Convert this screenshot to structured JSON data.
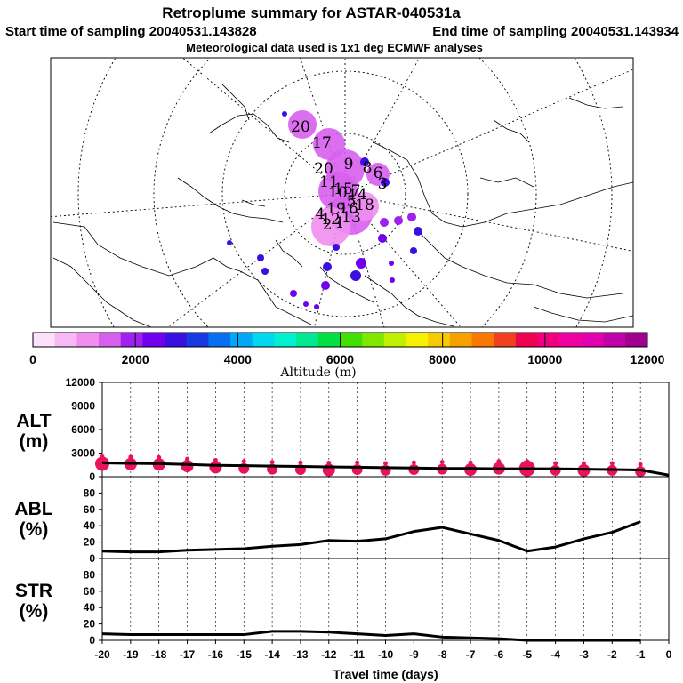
{
  "header": {
    "title": "Retroplume summary for ASTAR-040531a",
    "start_label": "Start time of sampling 20040531.143828",
    "end_label": "End time of sampling 20040531.143934",
    "met_note": "Meteorological data used is 1x1 deg ECMWF analyses"
  },
  "colorbar": {
    "label": "Altitude (m)",
    "ticks": [
      "0",
      "2000",
      "4000",
      "6000",
      "8000",
      "10000",
      "12000"
    ],
    "colors": [
      "#fde0fb",
      "#f7b8f5",
      "#ef8ef0",
      "#d85fee",
      "#a020f0",
      "#7000ee",
      "#3a10e0",
      "#1838e0",
      "#0870f0",
      "#00a8f8",
      "#00d8f0",
      "#00f0d0",
      "#00e890",
      "#00e040",
      "#40e000",
      "#80e800",
      "#c0f000",
      "#f8f000",
      "#f8c800",
      "#f8a000",
      "#f87800",
      "#f04020",
      "#f00050",
      "#f00080",
      "#f000a0",
      "#e000b0",
      "#c000a8",
      "#a00090"
    ]
  },
  "map": {
    "plume_labels": [
      "20",
      "17",
      "20",
      "9",
      "8",
      "6",
      "3",
      "11",
      "10",
      "5",
      "15",
      "14",
      "19",
      "13",
      "18",
      "16",
      "12",
      "4",
      "2",
      "1",
      "7"
    ]
  },
  "chart_data": [
    {
      "type": "line",
      "panel": "ALT",
      "ylabel_line1": "ALT",
      "ylabel_line2": "(m)",
      "ylim": [
        0,
        12000
      ],
      "yticks": [
        "0",
        "3000",
        "6000",
        "9000",
        "12000"
      ],
      "x": [
        -20,
        -19,
        -18,
        -17,
        -16,
        -15,
        -14,
        -13,
        -12,
        -11,
        -10,
        -9,
        -8,
        -7,
        -6,
        -5,
        -4,
        -3,
        -2,
        -1,
        0
      ],
      "values": [
        1750,
        1700,
        1650,
        1550,
        1450,
        1400,
        1350,
        1300,
        1250,
        1200,
        1150,
        1100,
        1050,
        1050,
        1000,
        1000,
        1000,
        950,
        900,
        850,
        200
      ],
      "dot_values": [
        1650,
        1600,
        1550,
        1350,
        1200,
        1050,
        950,
        900,
        850,
        900,
        800,
        900,
        950,
        900,
        1050,
        1050,
        800,
        800,
        800,
        650
      ],
      "dot_sizes": [
        8,
        7,
        7,
        7,
        7,
        6,
        6,
        6,
        7,
        6,
        6,
        6,
        6,
        7,
        7,
        9,
        6,
        7,
        6,
        6
      ],
      "marker_color": "#e8145a"
    },
    {
      "type": "line",
      "panel": "ABL",
      "ylabel_line1": "ABL",
      "ylabel_line2": "(%)",
      "ylim": [
        0,
        100
      ],
      "yticks": [
        "0",
        "20",
        "40",
        "60",
        "80"
      ],
      "x": [
        -20,
        -19,
        -18,
        -17,
        -16,
        -15,
        -14,
        -13,
        -12,
        -11,
        -10,
        -9,
        -8,
        -7,
        -6,
        -5,
        -4,
        -3,
        -2,
        -1
      ],
      "values": [
        9,
        8,
        8,
        10,
        11,
        12,
        15,
        17,
        22,
        21,
        24,
        33,
        38,
        30,
        22,
        9,
        14,
        24,
        32,
        45
      ]
    },
    {
      "type": "line",
      "panel": "STR",
      "ylabel_line1": "STR",
      "ylabel_line2": "(%)",
      "ylim": [
        0,
        100
      ],
      "yticks": [
        "0",
        "20",
        "40",
        "60",
        "80"
      ],
      "x": [
        -20,
        -19,
        -18,
        -17,
        -16,
        -15,
        -14,
        -13,
        -12,
        -11,
        -10,
        -9,
        -8,
        -7,
        -6,
        -5,
        -4,
        -3,
        -2,
        -1
      ],
      "values": [
        8,
        7,
        7,
        7,
        7,
        7,
        11,
        11,
        10,
        8,
        6,
        8,
        4,
        3,
        2,
        0,
        0,
        0,
        0,
        0
      ],
      "xticks": [
        "-20",
        "-19",
        "-18",
        "-17",
        "-16",
        "-15",
        "-14",
        "-13",
        "-12",
        "-11",
        "-10",
        "-9",
        "-8",
        "-7",
        "-6",
        "-5",
        "-4",
        "-3",
        "-2",
        "-1",
        "0"
      ],
      "xlabel": "Travel time (days)"
    }
  ]
}
